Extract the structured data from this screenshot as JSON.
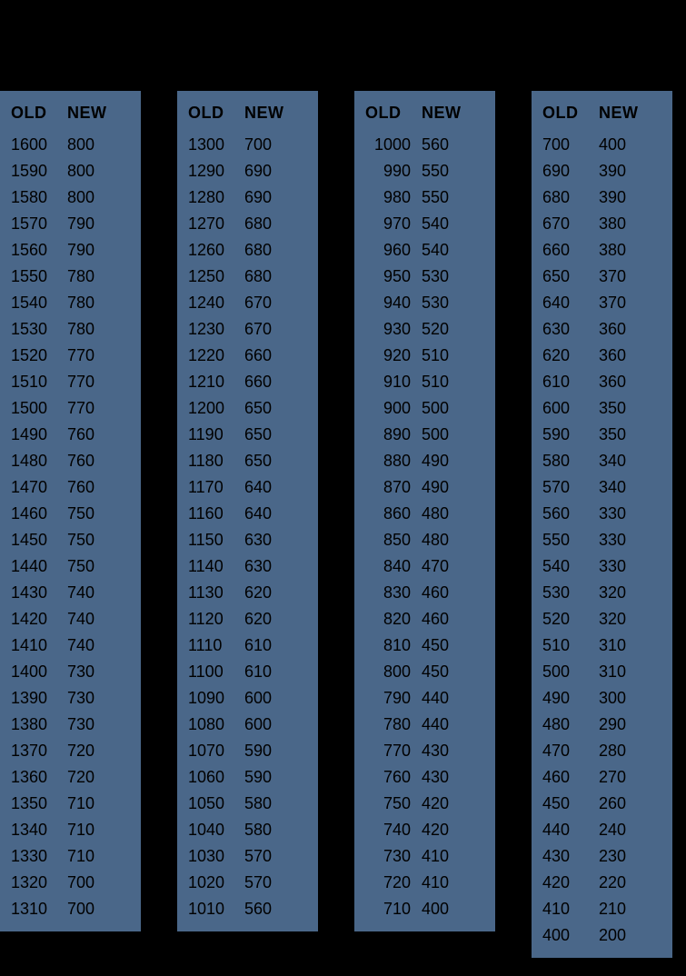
{
  "background_color": "#000000",
  "column_color": "#4a6789",
  "text_color": "#000000",
  "header_font_size": 18,
  "row_font_size": 18,
  "headers": {
    "old": "OLD",
    "new": "NEW"
  },
  "columns": [
    {
      "rows": [
        {
          "old": "1600",
          "new": "800"
        },
        {
          "old": "1590",
          "new": "800"
        },
        {
          "old": "1580",
          "new": "800"
        },
        {
          "old": "1570",
          "new": "790"
        },
        {
          "old": "1560",
          "new": "790"
        },
        {
          "old": "1550",
          "new": "780"
        },
        {
          "old": "1540",
          "new": "780"
        },
        {
          "old": "1530",
          "new": "780"
        },
        {
          "old": "1520",
          "new": "770"
        },
        {
          "old": "1510",
          "new": "770"
        },
        {
          "old": "1500",
          "new": "770"
        },
        {
          "old": "1490",
          "new": "760"
        },
        {
          "old": "1480",
          "new": "760"
        },
        {
          "old": "1470",
          "new": "760"
        },
        {
          "old": "1460",
          "new": "750"
        },
        {
          "old": "1450",
          "new": "750"
        },
        {
          "old": "1440",
          "new": "750"
        },
        {
          "old": "1430",
          "new": "740"
        },
        {
          "old": "1420",
          "new": "740"
        },
        {
          "old": "1410",
          "new": "740"
        },
        {
          "old": "1400",
          "new": "730"
        },
        {
          "old": "1390",
          "new": "730"
        },
        {
          "old": "1380",
          "new": "730"
        },
        {
          "old": "1370",
          "new": "720"
        },
        {
          "old": "1360",
          "new": "720"
        },
        {
          "old": "1350",
          "new": "710"
        },
        {
          "old": "1340",
          "new": "710"
        },
        {
          "old": "1330",
          "new": "710"
        },
        {
          "old": "1320",
          "new": "700"
        },
        {
          "old": "1310",
          "new": "700"
        }
      ]
    },
    {
      "rows": [
        {
          "old": "1300",
          "new": "700"
        },
        {
          "old": "1290",
          "new": "690"
        },
        {
          "old": "1280",
          "new": "690"
        },
        {
          "old": "1270",
          "new": "680"
        },
        {
          "old": "1260",
          "new": "680"
        },
        {
          "old": "1250",
          "new": "680"
        },
        {
          "old": "1240",
          "new": "670"
        },
        {
          "old": "1230",
          "new": "670"
        },
        {
          "old": "1220",
          "new": "660"
        },
        {
          "old": "1210",
          "new": "660"
        },
        {
          "old": "1200",
          "new": "650"
        },
        {
          "old": "1190",
          "new": "650"
        },
        {
          "old": "1180",
          "new": "650"
        },
        {
          "old": "1170",
          "new": "640"
        },
        {
          "old": "1160",
          "new": "640"
        },
        {
          "old": "1150",
          "new": "630"
        },
        {
          "old": "1140",
          "new": "630"
        },
        {
          "old": "1130",
          "new": "620"
        },
        {
          "old": "1120",
          "new": "620"
        },
        {
          "old": "1110",
          "new": "610"
        },
        {
          "old": "1100",
          "new": "610"
        },
        {
          "old": "1090",
          "new": "600"
        },
        {
          "old": "1080",
          "new": "600"
        },
        {
          "old": "1070",
          "new": "590"
        },
        {
          "old": "1060",
          "new": "590"
        },
        {
          "old": "1050",
          "new": "580"
        },
        {
          "old": "1040",
          "new": "580"
        },
        {
          "old": "1030",
          "new": "570"
        },
        {
          "old": "1020",
          "new": "570"
        },
        {
          "old": "1010",
          "new": "560"
        }
      ]
    },
    {
      "rows": [
        {
          "old": "1000",
          "new": "560"
        },
        {
          "old": "990",
          "new": "550"
        },
        {
          "old": "980",
          "new": "550"
        },
        {
          "old": "970",
          "new": "540"
        },
        {
          "old": "960",
          "new": "540"
        },
        {
          "old": "950",
          "new": "530"
        },
        {
          "old": "940",
          "new": "530"
        },
        {
          "old": "930",
          "new": "520"
        },
        {
          "old": "920",
          "new": "510"
        },
        {
          "old": "910",
          "new": "510"
        },
        {
          "old": "900",
          "new": "500"
        },
        {
          "old": "890",
          "new": "500"
        },
        {
          "old": "880",
          "new": "490"
        },
        {
          "old": "870",
          "new": "490"
        },
        {
          "old": "860",
          "new": "480"
        },
        {
          "old": "850",
          "new": "480"
        },
        {
          "old": "840",
          "new": "470"
        },
        {
          "old": "830",
          "new": "460"
        },
        {
          "old": "820",
          "new": "460"
        },
        {
          "old": "810",
          "new": "450"
        },
        {
          "old": "800",
          "new": "450"
        },
        {
          "old": "790",
          "new": "440"
        },
        {
          "old": "780",
          "new": "440"
        },
        {
          "old": "770",
          "new": "430"
        },
        {
          "old": "760",
          "new": "430"
        },
        {
          "old": "750",
          "new": "420"
        },
        {
          "old": "740",
          "new": "420"
        },
        {
          "old": "730",
          "new": "410"
        },
        {
          "old": "720",
          "new": "410"
        },
        {
          "old": "710",
          "new": "400"
        }
      ]
    },
    {
      "rows": [
        {
          "old": "700",
          "new": "400"
        },
        {
          "old": "690",
          "new": "390"
        },
        {
          "old": "680",
          "new": "390"
        },
        {
          "old": "670",
          "new": "380"
        },
        {
          "old": "660",
          "new": "380"
        },
        {
          "old": "650",
          "new": "370"
        },
        {
          "old": "640",
          "new": "370"
        },
        {
          "old": "630",
          "new": "360"
        },
        {
          "old": "620",
          "new": "360"
        },
        {
          "old": "610",
          "new": "360"
        },
        {
          "old": "600",
          "new": "350"
        },
        {
          "old": "590",
          "new": "350"
        },
        {
          "old": "580",
          "new": "340"
        },
        {
          "old": "570",
          "new": "340"
        },
        {
          "old": "560",
          "new": "330"
        },
        {
          "old": "550",
          "new": "330"
        },
        {
          "old": "540",
          "new": "330"
        },
        {
          "old": "530",
          "new": "320"
        },
        {
          "old": "520",
          "new": "320"
        },
        {
          "old": "510",
          "new": "310"
        },
        {
          "old": "500",
          "new": "310"
        },
        {
          "old": "490",
          "new": "300"
        },
        {
          "old": "480",
          "new": "290"
        },
        {
          "old": "470",
          "new": "280"
        },
        {
          "old": "460",
          "new": "270"
        },
        {
          "old": "450",
          "new": "260"
        },
        {
          "old": "440",
          "new": "240"
        },
        {
          "old": "430",
          "new": "230"
        },
        {
          "old": "420",
          "new": "220"
        },
        {
          "old": "410",
          "new": "210"
        },
        {
          "old": "400",
          "new": "200"
        }
      ]
    }
  ]
}
